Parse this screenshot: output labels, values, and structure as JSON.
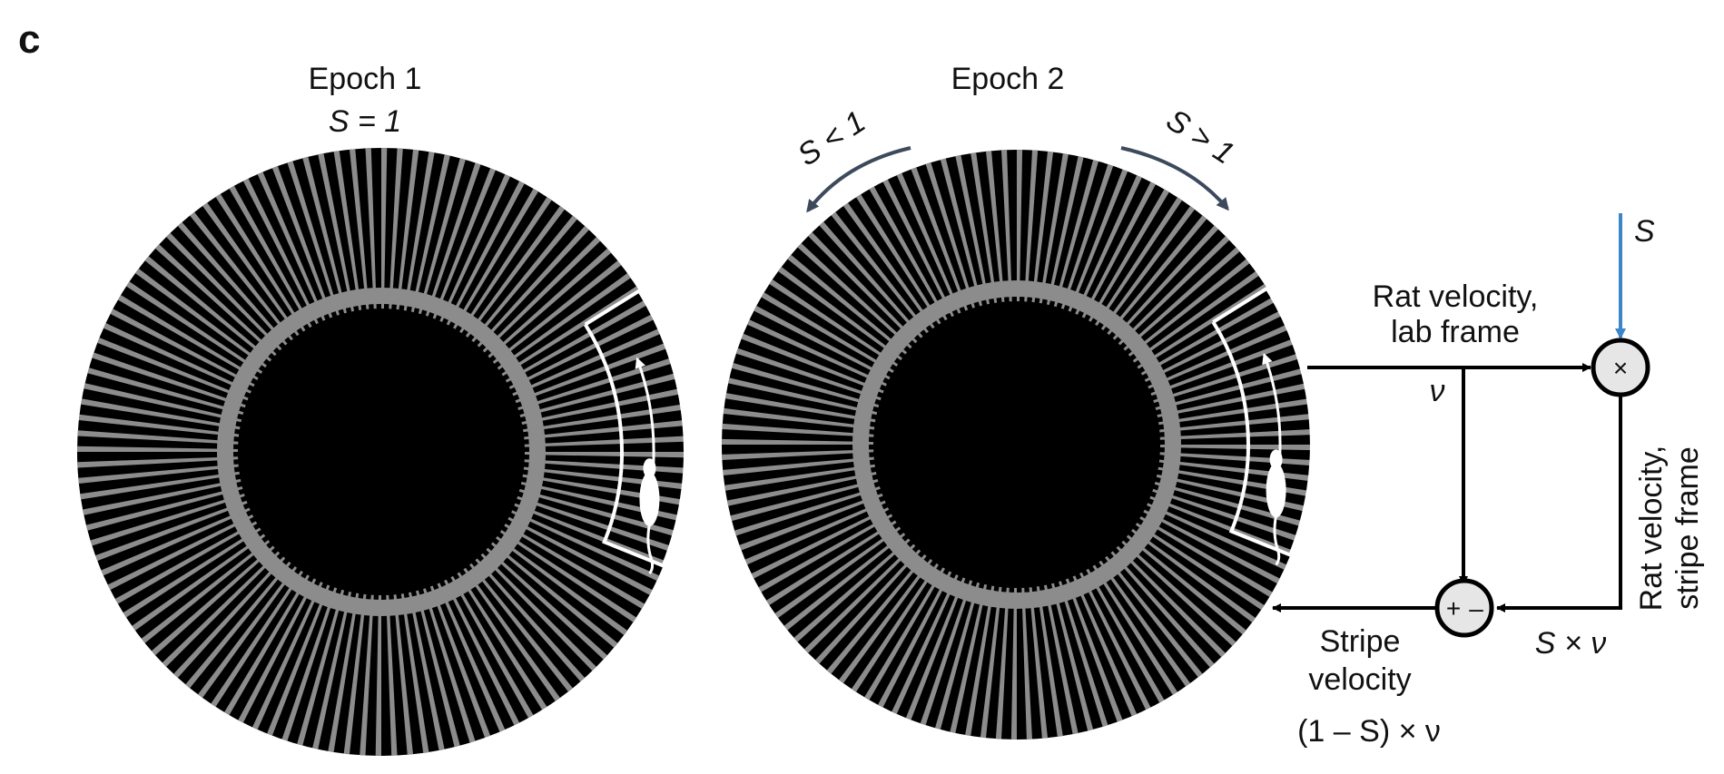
{
  "panel_label": "c",
  "epoch1": {
    "title": "Epoch 1",
    "gain_label": "S = 1"
  },
  "epoch2": {
    "title": "Epoch 2",
    "ccw_label": "S < 1",
    "cw_label": "S > 1"
  },
  "flow": {
    "s_input": "S",
    "multiplier_symbol": "×",
    "comparator_plus": "+",
    "comparator_minus": "–",
    "lab_velocity_line1": "Rat velocity,",
    "lab_velocity_line2": "lab frame",
    "v_symbol": "ν",
    "stripe_frame_line1": "Rat velocity,",
    "stripe_frame_line2": "stripe frame",
    "product_label": "S × ν",
    "stripe_velocity_line1": "Stripe",
    "stripe_velocity_line2": "velocity",
    "stripe_velocity_formula": "(1 – S) × ν"
  },
  "colors": {
    "stripe_dark": "#000000",
    "stripe_light": "#8c8c8c",
    "input_arrow": "#3a86c8",
    "rotation_arrow": "#3d4a5c",
    "node_fill": "#e6e6e6"
  }
}
